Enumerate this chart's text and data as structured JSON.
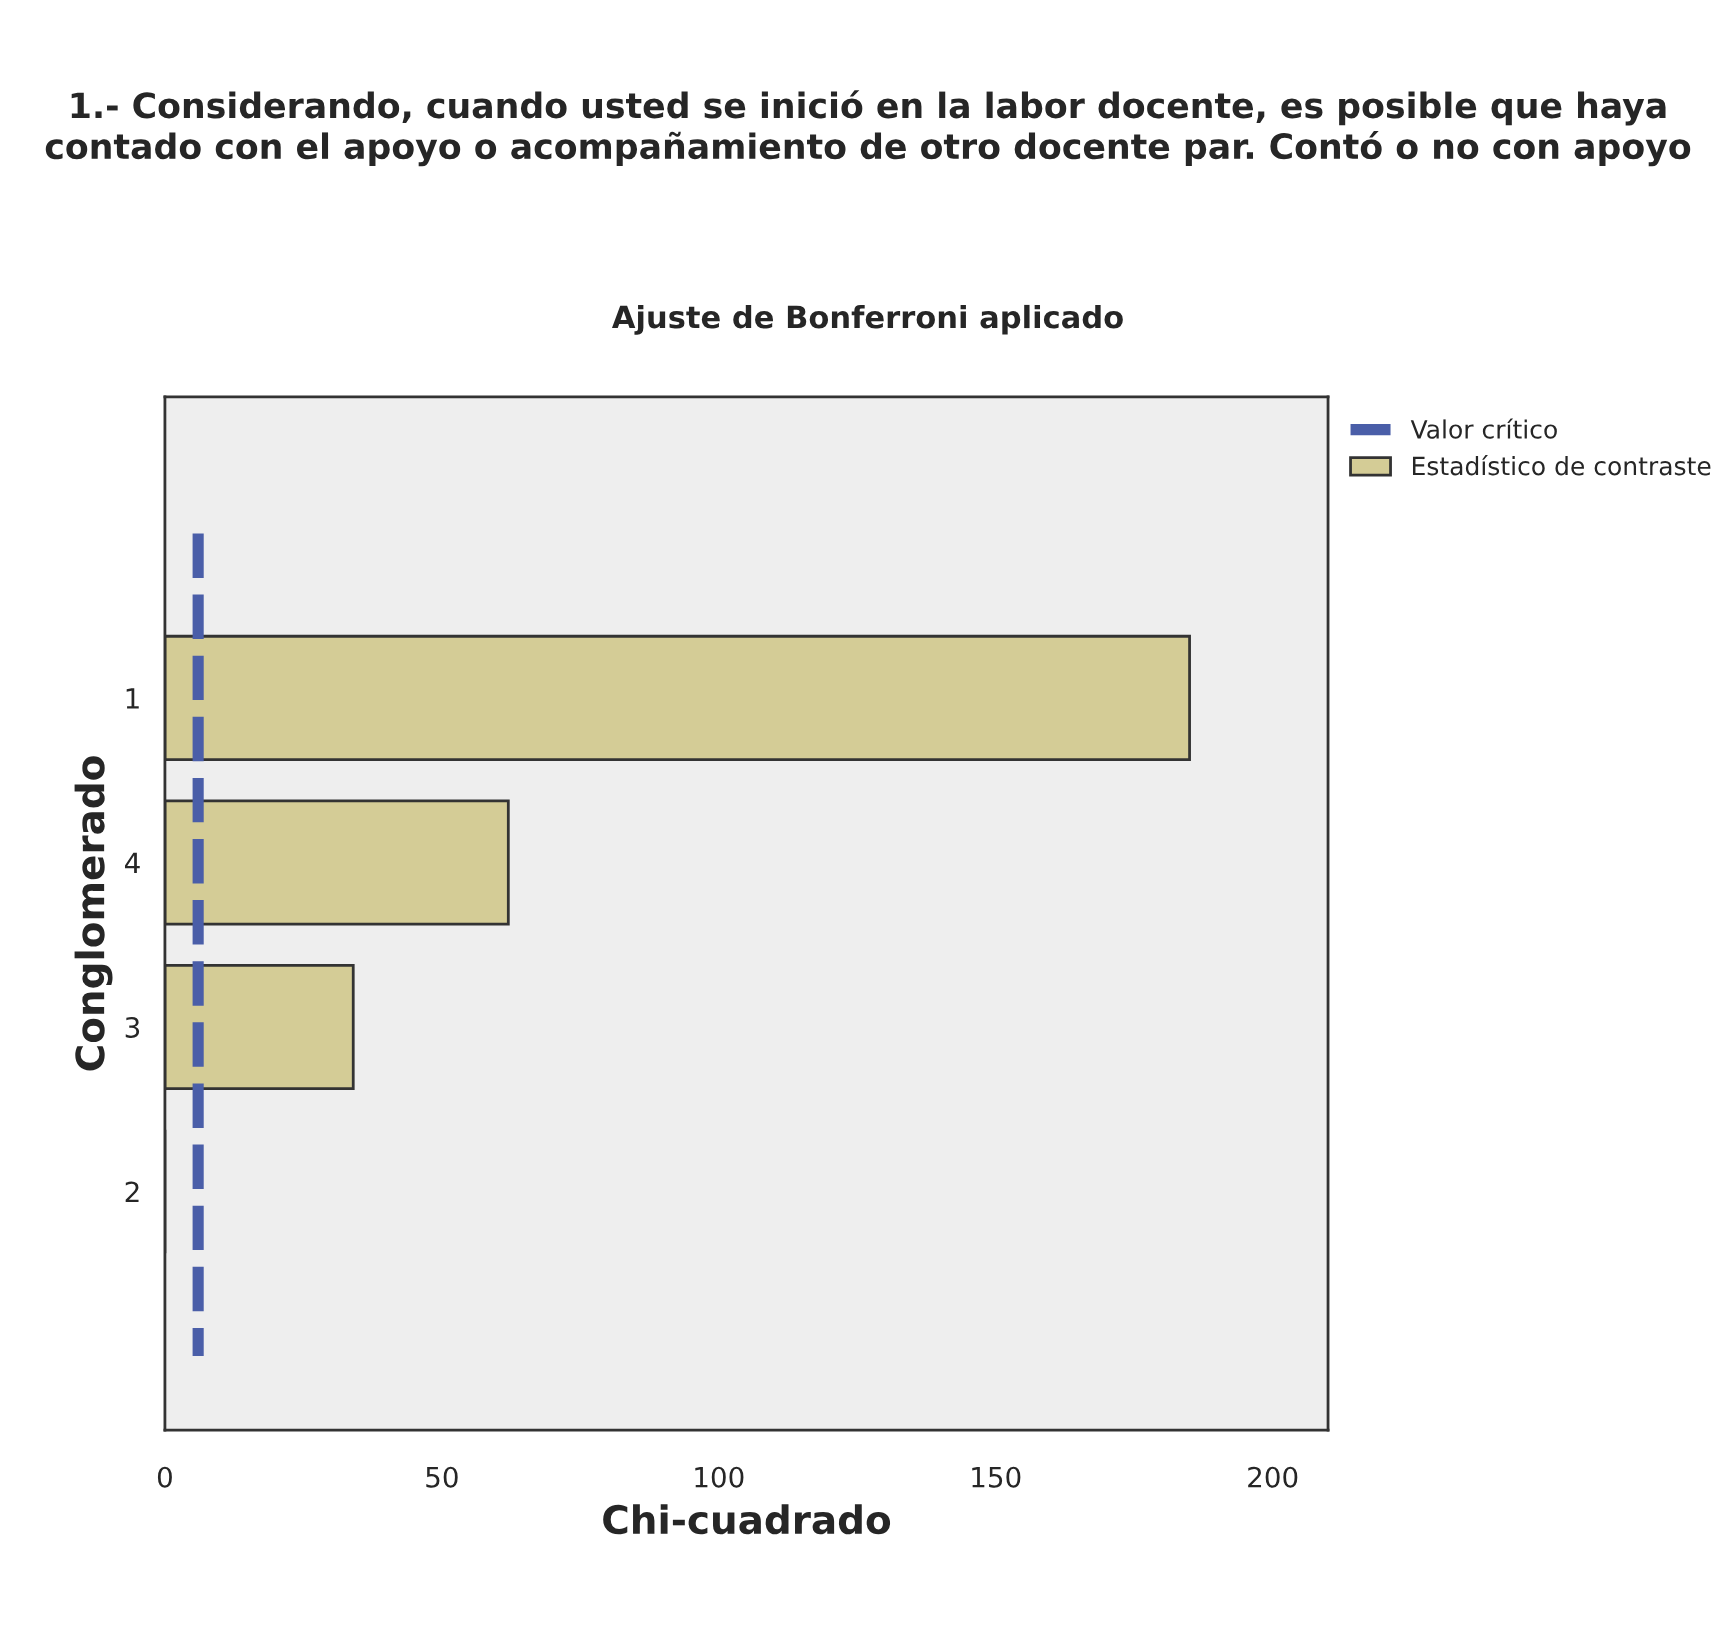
{
  "chart_data": {
    "type": "bar",
    "orientation": "horizontal",
    "title": "1.- Considerando, cuando usted se inició en la labor docente, es posible que haya contado con el apoyo o acompañamiento de otro docente par. Contó o no con apoyo",
    "subtitle": "Ajuste de Bonferroni aplicado",
    "xlabel": "Chi-cuadrado",
    "ylabel": "Conglomerado",
    "categories": [
      null,
      "1",
      "4",
      "3",
      "2",
      null
    ],
    "series": [
      {
        "name": "Estadístico de contraste",
        "color": "#d4cc96",
        "values": [
          null,
          185,
          62,
          34,
          0,
          null
        ]
      }
    ],
    "ref_lines": [
      {
        "axis": "x",
        "value": 6,
        "label": "Valor crítico",
        "color": "#4a5ea8",
        "line_style": "dashed"
      }
    ],
    "xlim": [
      0,
      210
    ],
    "xticks": [
      0,
      50,
      100,
      150,
      200
    ],
    "grid": false,
    "legend": "top right"
  }
}
